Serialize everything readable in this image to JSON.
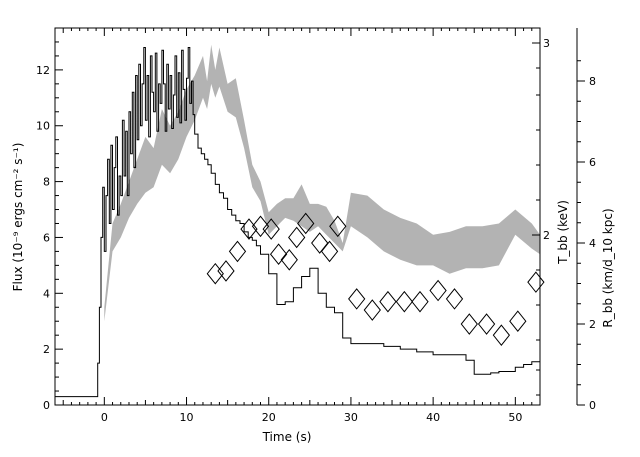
{
  "chart_data": {
    "type": "line",
    "xlabel": "Time (s)",
    "ylabel_left": "Flux (10⁻⁹ ergs cm⁻² s⁻¹)",
    "ylabel_right1": "T_bb (keV)",
    "ylabel_right2": "R_bb (km/d_10 kpc)",
    "xlim": [
      -6,
      53
    ],
    "ylim_left": [
      0,
      13.5
    ],
    "x_ticks": [
      "0",
      "10",
      "20",
      "30",
      "40",
      "50"
    ],
    "y_ticks_left": [
      "0",
      "2",
      "4",
      "6",
      "8",
      "10",
      "12"
    ],
    "y_ticks_t": [
      "2",
      "3"
    ],
    "y_ticks_r": [
      "0",
      "2",
      "4",
      "6",
      "8"
    ],
    "series": [
      {
        "style": "black-line",
        "x": [
          -6,
          -1,
          -0.8,
          -0.6,
          -0.4,
          -0.2,
          0,
          0.2,
          0.4,
          0.6,
          0.8,
          1,
          1.2,
          1.4,
          1.6,
          1.8,
          2,
          2.2,
          2.4,
          2.6,
          2.8,
          3,
          3.2,
          3.4,
          3.6,
          3.8,
          4,
          4.2,
          4.4,
          4.6,
          4.8,
          5,
          5.2,
          5.4,
          5.6,
          5.8,
          6,
          6.2,
          6.4,
          6.6,
          6.8,
          7,
          7.2,
          7.4,
          7.6,
          7.8,
          8,
          8.2,
          8.4,
          8.6,
          8.8,
          9,
          9.2,
          9.4,
          9.6,
          9.8,
          10,
          10.2,
          10.4,
          10.6,
          10.8,
          11,
          11.4,
          11.8,
          12.2,
          12.6,
          13,
          13.5,
          14,
          14.5,
          15,
          15.5,
          16,
          16.5,
          17,
          17.5,
          18,
          18.5,
          19,
          20,
          21,
          22,
          23,
          24,
          25,
          26,
          27,
          28,
          29,
          30,
          32,
          34,
          36,
          38,
          40,
          42,
          44,
          45,
          46,
          47,
          48,
          50,
          51,
          52,
          53
        ],
        "values": [
          0.3,
          0.3,
          1.5,
          3.5,
          6,
          7.8,
          5.5,
          7.5,
          8.8,
          6.5,
          9.3,
          7,
          8.5,
          9.6,
          6.8,
          8.2,
          7.5,
          10.2,
          8.2,
          9.8,
          7.5,
          10.5,
          9.0,
          11.2,
          8.5,
          11.8,
          9.5,
          12.2,
          10,
          11.5,
          12.8,
          10.2,
          11.8,
          9.6,
          12.5,
          11.2,
          10.5,
          12.6,
          9.8,
          11.5,
          10.8,
          12.7,
          11.5,
          9.8,
          12.2,
          10.6,
          11.8,
          9.9,
          11.1,
          12.5,
          10.3,
          11.9,
          10.1,
          12.7,
          11.3,
          10.2,
          11.7,
          12.8,
          10.8,
          11.6,
          10.4,
          9.7,
          9.2,
          9.0,
          8.8,
          8.6,
          8.3,
          7.9,
          7.6,
          7.4,
          7.0,
          6.8,
          6.6,
          6.5,
          6.2,
          6.0,
          5.9,
          5.7,
          5.4,
          4.7,
          3.6,
          3.7,
          4.2,
          4.6,
          4.9,
          4.0,
          3.5,
          3.3,
          2.4,
          2.2,
          2.2,
          2.1,
          2.0,
          1.9,
          1.8,
          1.8,
          1.6,
          1.1,
          1.1,
          1.15,
          1.2,
          1.35,
          1.45,
          1.55,
          1.6
        ]
      },
      {
        "style": "gray-band",
        "x": [
          0,
          1,
          2,
          3,
          4,
          5,
          6,
          7,
          8,
          9,
          10,
          11,
          12,
          12.5,
          13,
          13.5,
          14,
          15,
          16,
          17,
          18,
          19,
          20,
          21,
          22,
          23,
          24,
          25,
          26,
          27,
          28,
          29,
          30,
          32,
          34,
          36,
          38,
          40,
          42,
          44,
          46,
          48,
          50,
          52,
          53
        ],
        "upper": [
          3.5,
          6.5,
          7.2,
          8.0,
          8.8,
          9.6,
          9.2,
          10.6,
          10.0,
          10.5,
          11.3,
          11.8,
          12.5,
          11.6,
          12.9,
          12.0,
          12.8,
          11.5,
          11.7,
          10.2,
          8.6,
          8.0,
          6.9,
          7.2,
          7.4,
          7.4,
          7.9,
          7.2,
          7.2,
          7.1,
          6.6,
          5.8,
          7.6,
          7.5,
          7.0,
          6.7,
          6.5,
          6.1,
          6.2,
          6.4,
          6.4,
          6.5,
          7.0,
          6.5,
          6.1
        ],
        "lower": [
          3.0,
          5.5,
          6.0,
          6.7,
          7.2,
          7.6,
          7.8,
          8.6,
          8.3,
          8.8,
          9.6,
          10.2,
          11.0,
          10.6,
          11.5,
          11.0,
          11.4,
          10.5,
          10.3,
          9.2,
          7.8,
          7.3,
          6.1,
          6.4,
          6.7,
          6.6,
          6.4,
          6.2,
          6.4,
          6.1,
          5.8,
          5.5,
          6.4,
          6.0,
          5.5,
          5.2,
          5.0,
          5.0,
          4.7,
          4.9,
          4.9,
          5.0,
          6.1,
          5.6,
          5.4
        ]
      },
      {
        "style": "open-diamonds",
        "x": [
          13.5,
          14.8,
          16.2,
          17.6,
          19.0,
          20.3,
          21.2,
          22.5,
          23.4,
          24.5,
          26.2,
          27.4,
          28.4,
          30.7,
          32.6,
          34.5,
          36.5,
          38.4,
          40.6,
          42.6,
          44.4,
          46.5,
          48.3,
          50.3,
          52.5
        ],
        "values": [
          4.7,
          4.8,
          5.5,
          6.3,
          6.4,
          6.3,
          5.4,
          5.2,
          6.0,
          6.5,
          5.8,
          5.5,
          6.4,
          3.8,
          3.4,
          3.7,
          3.7,
          3.7,
          4.1,
          3.8,
          2.9,
          2.9,
          2.5,
          3.0,
          4.4
        ]
      }
    ]
  }
}
